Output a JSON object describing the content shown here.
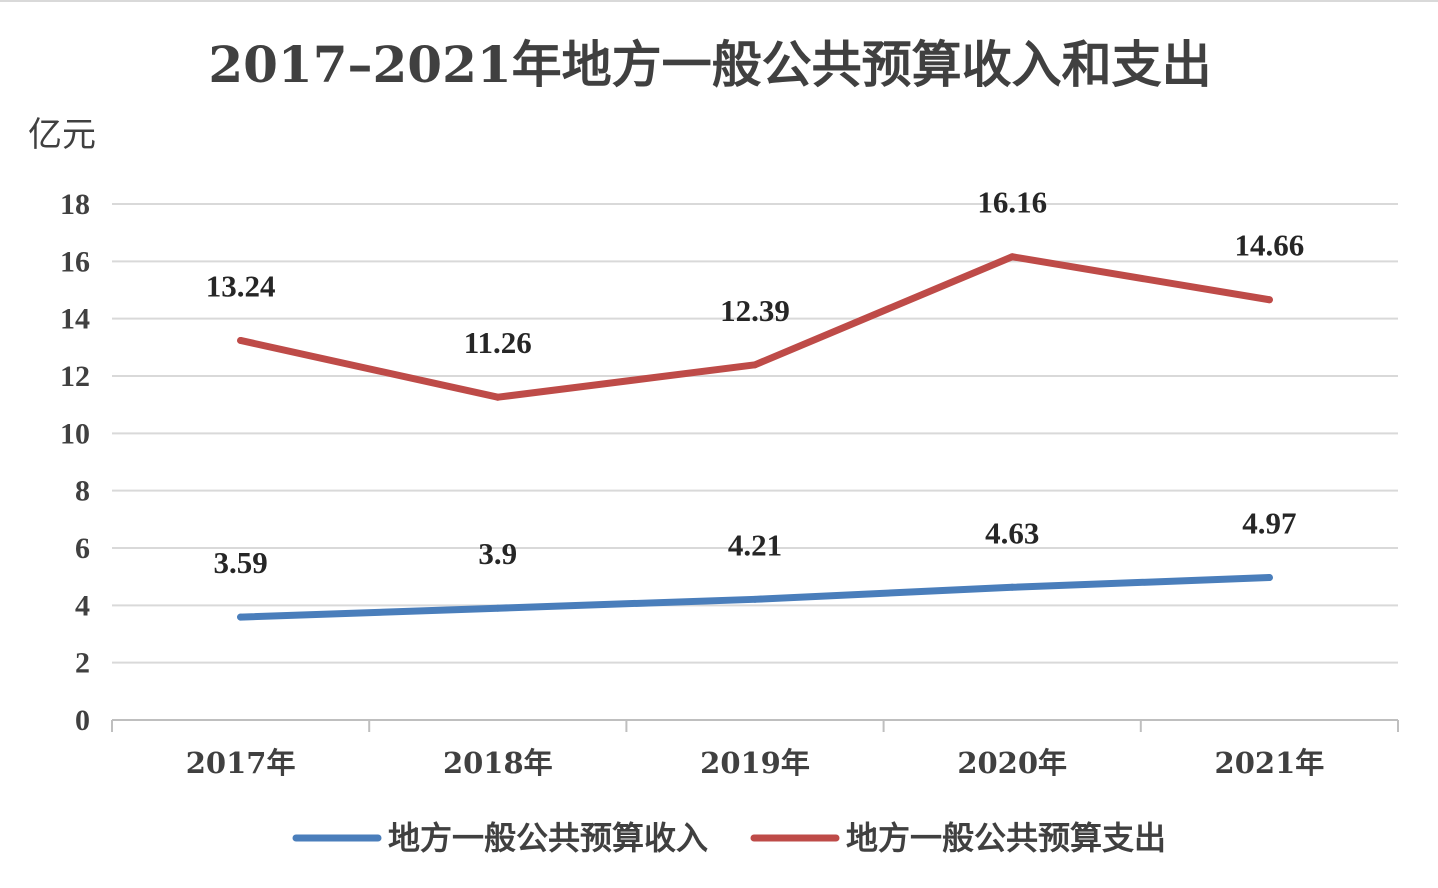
{
  "chart_data": {
    "type": "line",
    "title": "2017–2021年地方一般公共预算收入和支出",
    "ylabel": "亿元",
    "xlabel": "",
    "categories": [
      "2017年",
      "2018年",
      "2019年",
      "2020年",
      "2021年"
    ],
    "ylim": [
      0,
      18
    ],
    "yticks": [
      0,
      2,
      4,
      6,
      8,
      10,
      12,
      14,
      16,
      18
    ],
    "grid": true,
    "legend_position": "bottom",
    "series": [
      {
        "name": "地方一般公共预算收入",
        "color": "#4a7ebb",
        "values": [
          3.59,
          3.9,
          4.21,
          4.63,
          4.97
        ],
        "labels": [
          "3.59",
          "3.9",
          "4.21",
          "4.63",
          "4.97"
        ]
      },
      {
        "name": "地方一般公共预算支出",
        "color": "#be4b48",
        "values": [
          13.24,
          11.26,
          12.39,
          16.16,
          14.66
        ],
        "labels": [
          "13.24",
          "11.26",
          "12.39",
          "16.16",
          "14.66"
        ]
      }
    ]
  }
}
